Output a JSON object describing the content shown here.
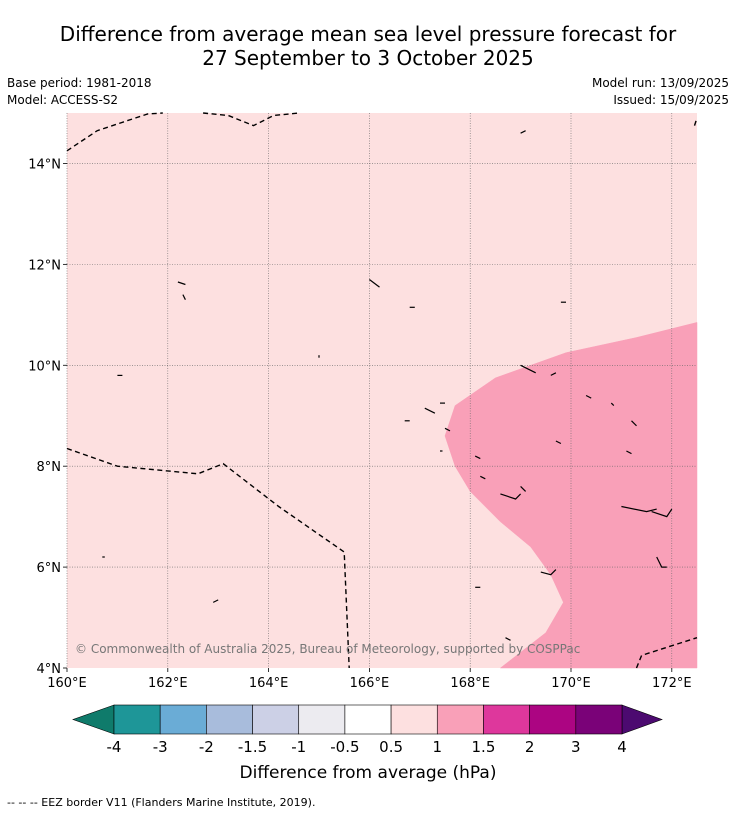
{
  "title": {
    "line1": "Difference from average mean sea level pressure forecast for",
    "line2": "27 September to 3 October 2025"
  },
  "meta": {
    "base_period": "Base period: 1981-2018",
    "model": "Model: ACCESS-S2",
    "model_run": "Model run: 13/09/2025",
    "issued": "Issued: 15/09/2025"
  },
  "map": {
    "lon_range": [
      160,
      172.5
    ],
    "lat_range": [
      4,
      15
    ],
    "lon_ticks": [
      {
        "value": 160,
        "label": "160°E"
      },
      {
        "value": 162,
        "label": "162°E"
      },
      {
        "value": 164,
        "label": "164°E"
      },
      {
        "value": 166,
        "label": "166°E"
      },
      {
        "value": 168,
        "label": "168°E"
      },
      {
        "value": 170,
        "label": "170°E"
      },
      {
        "value": 172,
        "label": "172°E"
      }
    ],
    "lat_ticks": [
      {
        "value": 4,
        "label": "4°N"
      },
      {
        "value": 6,
        "label": "6°N"
      },
      {
        "value": 8,
        "label": "8°N"
      },
      {
        "value": 10,
        "label": "10°N"
      },
      {
        "value": 12,
        "label": "12°N"
      },
      {
        "value": 14,
        "label": "14°N"
      }
    ],
    "base_fill": "#fde0e0",
    "anomaly_fill": "#f9a0b8",
    "anomaly_region": [
      [
        172.5,
        10.85
      ],
      [
        171.3,
        10.55
      ],
      [
        169.9,
        10.25
      ],
      [
        168.5,
        9.75
      ],
      [
        167.7,
        9.2
      ],
      [
        167.5,
        8.6
      ],
      [
        167.7,
        8.0
      ],
      [
        168.0,
        7.5
      ],
      [
        168.6,
        6.9
      ],
      [
        169.2,
        6.4
      ],
      [
        169.6,
        5.85
      ],
      [
        169.85,
        5.3
      ],
      [
        169.5,
        4.7
      ],
      [
        168.6,
        4.0
      ],
      [
        172.5,
        4.0
      ]
    ],
    "eez_borders": [
      [
        [
          160.0,
          14.25
        ],
        [
          160.6,
          14.65
        ],
        [
          161.2,
          14.85
        ],
        [
          161.6,
          14.98
        ],
        [
          161.9,
          15.0
        ]
      ],
      [
        [
          162.7,
          15.0
        ],
        [
          163.2,
          14.95
        ],
        [
          163.7,
          14.75
        ],
        [
          164.1,
          14.95
        ],
        [
          164.6,
          15.0
        ]
      ],
      [
        [
          160.0,
          8.35
        ],
        [
          161.0,
          8.0
        ],
        [
          162.6,
          7.85
        ],
        [
          163.1,
          8.05
        ],
        [
          164.2,
          7.2
        ],
        [
          165.5,
          6.3
        ],
        [
          165.6,
          4.0
        ]
      ],
      [
        [
          171.3,
          4.0
        ],
        [
          171.4,
          4.25
        ],
        [
          172.5,
          4.6
        ]
      ],
      [
        [
          172.45,
          14.75
        ],
        [
          172.5,
          14.9
        ]
      ]
    ],
    "islands": [
      [
        [
          162.2,
          11.65
        ],
        [
          162.35,
          11.6
        ]
      ],
      [
        [
          162.3,
          11.4
        ],
        [
          162.35,
          11.3
        ]
      ],
      [
        [
          166.0,
          11.7
        ],
        [
          166.2,
          11.55
        ]
      ],
      [
        [
          166.8,
          11.15
        ],
        [
          166.9,
          11.15
        ]
      ],
      [
        [
          169.8,
          11.25
        ],
        [
          169.9,
          11.25
        ]
      ],
      [
        [
          169.0,
          14.6
        ],
        [
          169.1,
          14.65
        ]
      ],
      [
        [
          165.0,
          10.2
        ],
        [
          165.0,
          10.15
        ]
      ],
      [
        [
          161.0,
          9.8
        ],
        [
          161.1,
          9.8
        ]
      ],
      [
        [
          169.0,
          10.0
        ],
        [
          169.3,
          9.85
        ]
      ],
      [
        [
          169.6,
          9.8
        ],
        [
          169.7,
          9.85
        ]
      ],
      [
        [
          167.4,
          9.25
        ],
        [
          167.5,
          9.25
        ]
      ],
      [
        [
          167.1,
          9.15
        ],
        [
          167.3,
          9.05
        ]
      ],
      [
        [
          166.7,
          8.9
        ],
        [
          166.8,
          8.9
        ]
      ],
      [
        [
          170.3,
          9.4
        ],
        [
          170.4,
          9.35
        ]
      ],
      [
        [
          170.8,
          9.25
        ],
        [
          170.85,
          9.2
        ]
      ],
      [
        [
          171.2,
          8.9
        ],
        [
          171.3,
          8.8
        ]
      ],
      [
        [
          171.1,
          8.3
        ],
        [
          171.2,
          8.25
        ]
      ],
      [
        [
          167.5,
          8.75
        ],
        [
          167.6,
          8.7
        ]
      ],
      [
        [
          168.1,
          8.2
        ],
        [
          168.2,
          8.15
        ]
      ],
      [
        [
          168.2,
          7.8
        ],
        [
          168.3,
          7.75
        ]
      ],
      [
        [
          168.6,
          7.45
        ],
        [
          168.9,
          7.35
        ],
        [
          169.0,
          7.45
        ]
      ],
      [
        [
          169.0,
          7.6
        ],
        [
          169.1,
          7.5
        ]
      ],
      [
        [
          171.0,
          7.2
        ],
        [
          171.5,
          7.1
        ],
        [
          171.7,
          7.15
        ]
      ],
      [
        [
          171.6,
          7.1
        ],
        [
          171.9,
          7.0
        ],
        [
          172.0,
          7.15
        ]
      ],
      [
        [
          171.7,
          6.2
        ],
        [
          171.8,
          6.0
        ],
        [
          171.9,
          6.0
        ]
      ],
      [
        [
          169.4,
          5.9
        ],
        [
          169.6,
          5.85
        ],
        [
          169.7,
          5.95
        ]
      ],
      [
        [
          168.1,
          5.6
        ],
        [
          168.2,
          5.6
        ]
      ],
      [
        [
          168.7,
          4.6
        ],
        [
          168.8,
          4.55
        ]
      ],
      [
        [
          162.9,
          5.3
        ],
        [
          163.0,
          5.35
        ]
      ],
      [
        [
          160.7,
          6.2
        ],
        [
          160.75,
          6.2
        ]
      ],
      [
        [
          167.4,
          8.3
        ],
        [
          167.45,
          8.3
        ]
      ],
      [
        [
          169.7,
          8.5
        ],
        [
          169.8,
          8.45
        ]
      ]
    ]
  },
  "attribution": "© Commonwealth of Australia 2025, Bureau of Meteorology, supported by COSPPac",
  "colorbar": {
    "label": "Difference from average (hPa)",
    "under_color": "#0f7b6b",
    "over_color": "#4c0a70",
    "bins": [
      {
        "color": "#1e9698"
      },
      {
        "color": "#6aacd6"
      },
      {
        "color": "#a8bcdc"
      },
      {
        "color": "#ccd0e6"
      },
      {
        "color": "#ecebf0"
      },
      {
        "color": "#ffffff"
      },
      {
        "color": "#fde0e0"
      },
      {
        "color": "#f9a0b8"
      },
      {
        "color": "#de379c"
      },
      {
        "color": "#ac0582"
      },
      {
        "color": "#7a0278"
      }
    ],
    "ticks": [
      "-4",
      "-3",
      "-2",
      "-1.5",
      "-1",
      "-0.5",
      "0.5",
      "1",
      "1.5",
      "2",
      "3",
      "4"
    ]
  },
  "footnote": "-- -- -- EEZ border V11 (Flanders Marine Institute, 2019)."
}
